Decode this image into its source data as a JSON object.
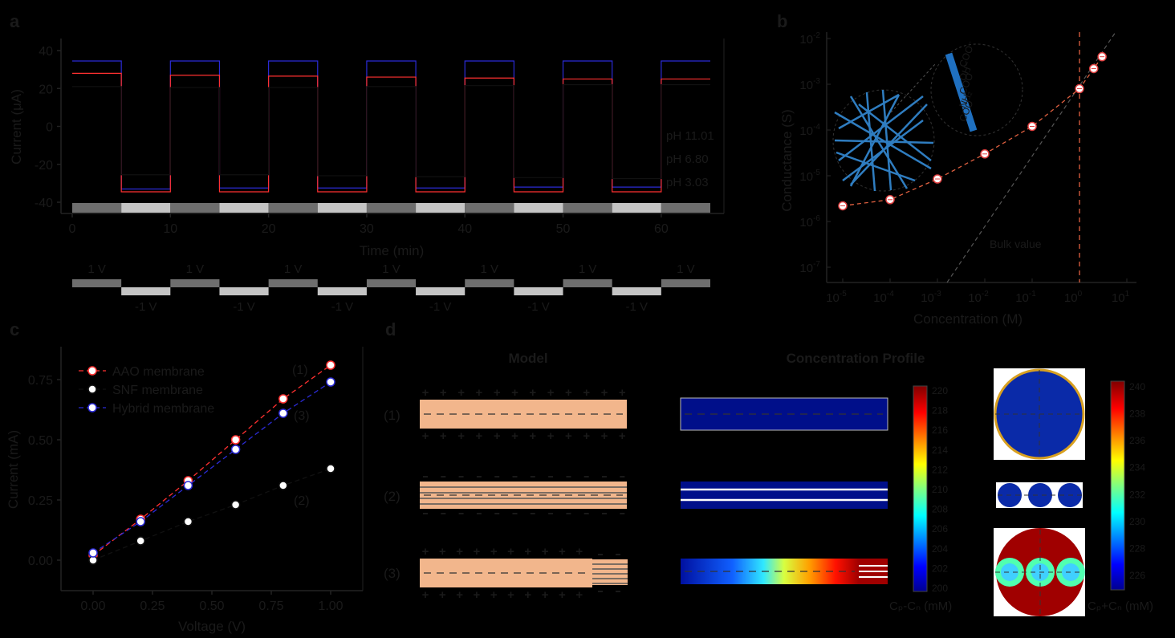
{
  "panel_labels": {
    "a": "a",
    "b": "b",
    "c": "c",
    "d": "d"
  },
  "chart_data": [
    {
      "panel": "a",
      "type": "line",
      "xlabel": "Time (min)",
      "ylabel": "Current (μA)",
      "xlim": [
        0,
        65
      ],
      "ylim": [
        -42,
        45
      ],
      "xticks": [
        "0",
        "10",
        "20",
        "30",
        "40",
        "50",
        "60"
      ],
      "yticks": [
        "40",
        "20",
        "0",
        "-20",
        "-40"
      ],
      "switch_period_min": 5,
      "series": [
        {
          "name": "pH 11.01",
          "color": "#2b2bd6",
          "positive": [
            34.5,
            34.5,
            34.5,
            34.5,
            34.5,
            34.5,
            34.5
          ],
          "negative": [
            -33,
            -32.5,
            -32.5,
            -32.5,
            -32,
            -32,
            -32
          ]
        },
        {
          "name": "pH 6.80",
          "color": "#ff3030",
          "positive": [
            28,
            27,
            26.5,
            26,
            25.5,
            25,
            25
          ],
          "negative": [
            -34.5,
            -34.5,
            -34.5,
            -34.5,
            -34.5,
            -34.5,
            -34.5
          ]
        },
        {
          "name": "pH 3.03",
          "color": "#111111",
          "positive": [
            21,
            20.5,
            20.5,
            21,
            21.5,
            22,
            22
          ],
          "negative": [
            -25.5,
            -25.5,
            -26,
            -26.5,
            -27,
            -27.5,
            -28
          ]
        }
      ],
      "voltage_labels": {
        "positive": "1 V",
        "negative": "-1 V"
      }
    },
    {
      "panel": "b",
      "type": "scatter",
      "xlabel": "Concentration (M)",
      "ylabel": "Conductance (S)",
      "xscale": "log",
      "yscale": "log",
      "xlim": [
        1e-06,
        10
      ],
      "ylim": [
        1e-07,
        0.01
      ],
      "xtick_exponents": [
        "-5",
        "-4",
        "-3",
        "-2",
        "-1",
        "0",
        "1"
      ],
      "ytick_exponents": [
        "-2",
        "-3",
        "-4",
        "-5",
        "-6",
        "-7"
      ],
      "x": [
        1e-05,
        0.0001,
        0.001,
        0.01,
        0.1,
        1,
        2,
        3
      ],
      "y": [
        2.2e-06,
        3e-06,
        8.5e-06,
        3e-05,
        0.00012,
        0.0008,
        0.0022,
        0.004
      ],
      "annotations": {
        "bulk": "Bulk value"
      },
      "inset_labels": [
        "COO⁻",
        "OH⁻",
        "COO⁻",
        "NH₂",
        "COO⁻"
      ]
    },
    {
      "panel": "c",
      "type": "line",
      "xlabel": "Voltage (V)",
      "ylabel": "Current (mA)",
      "xlim": [
        -0.12,
        1.12
      ],
      "ylim": [
        -0.12,
        0.9
      ],
      "xticks": [
        "0.00",
        "0.25",
        "0.50",
        "0.75",
        "1.00"
      ],
      "yticks": [
        "0.00",
        "0.25",
        "0.50",
        "0.75"
      ],
      "x": [
        0,
        0.2,
        0.4,
        0.6,
        0.8,
        1.0
      ],
      "series": [
        {
          "name": "AAO membrane",
          "tag": "(1)",
          "color": "#ff3030",
          "values": [
            0.02,
            0.17,
            0.33,
            0.5,
            0.67,
            0.81
          ]
        },
        {
          "name": "SNF membrane",
          "tag": "(2)",
          "color": "#111111",
          "values": [
            0.0,
            0.08,
            0.16,
            0.23,
            0.31,
            0.38
          ]
        },
        {
          "name": "Hybrid membrane",
          "tag": "(3)",
          "color": "#2b2bd6",
          "values": [
            0.03,
            0.16,
            0.31,
            0.46,
            0.61,
            0.74
          ]
        }
      ]
    },
    {
      "panel": "d",
      "type": "heatmap",
      "titles": {
        "model": "Model",
        "profile": "Concentration Profile"
      },
      "rows": [
        "(1)",
        "(2)",
        "(3)"
      ],
      "colorbar_left": {
        "label": "Cₚ-Cₙ (mM)",
        "ticks": [
          "220",
          "218",
          "216",
          "214",
          "212",
          "210",
          "208",
          "206",
          "204",
          "202",
          "200"
        ]
      },
      "colorbar_right": {
        "label": "Cₚ+Cₙ (mM)",
        "ticks": [
          "240",
          "238",
          "236",
          "234",
          "232",
          "230",
          "228",
          "226"
        ]
      }
    }
  ]
}
